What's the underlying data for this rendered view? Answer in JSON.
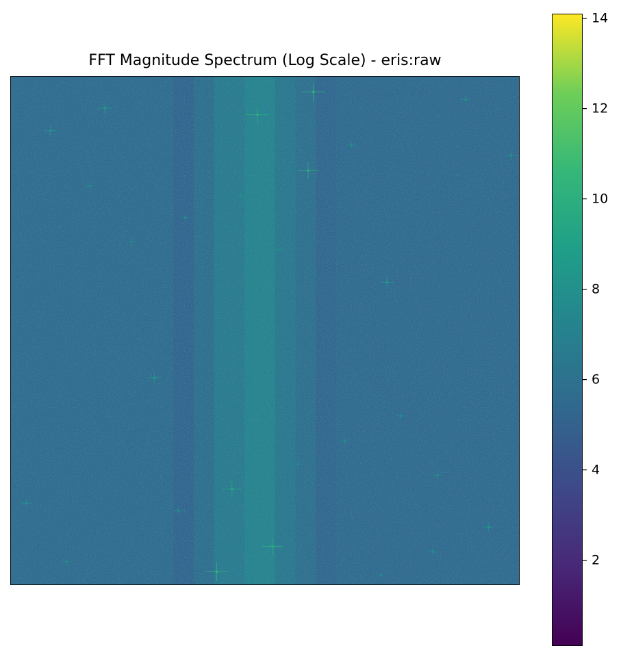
{
  "chart_data": {
    "type": "heatmap",
    "title": "FFT Magnitude Spectrum (Log Scale) - eris:raw",
    "xlabel": "",
    "ylabel": "",
    "axes_visible": false,
    "colormap": "viridis",
    "colorbar": {
      "placement": "right",
      "range": [
        0.1,
        14.1
      ],
      "ticks": [
        2,
        4,
        6,
        8,
        10,
        12,
        14
      ],
      "tick_labels": [
        "2",
        "4",
        "6",
        "8",
        "10",
        "12",
        "14"
      ]
    },
    "background_value": 5.6,
    "column_bands": [
      {
        "x": [
          0.0,
          0.32
        ],
        "value": 5.6
      },
      {
        "x": [
          0.32,
          0.36
        ],
        "value": 5.2
      },
      {
        "x": [
          0.36,
          0.4
        ],
        "value": 5.8
      },
      {
        "x": [
          0.4,
          0.46
        ],
        "value": 6.6
      },
      {
        "x": [
          0.46,
          0.52
        ],
        "value": 7.2
      },
      {
        "x": [
          0.52,
          0.56
        ],
        "value": 6.4
      },
      {
        "x": [
          0.56,
          0.6
        ],
        "value": 5.9
      },
      {
        "x": [
          0.6,
          0.64
        ],
        "value": 5.3
      },
      {
        "x": [
          0.64,
          1.0
        ],
        "value": 5.5
      }
    ],
    "peaks": [
      {
        "x": 0.595,
        "y": 0.03,
        "value": 10.2
      },
      {
        "x": 0.485,
        "y": 0.075,
        "value": 10.0
      },
      {
        "x": 0.585,
        "y": 0.185,
        "value": 9.8
      },
      {
        "x": 0.185,
        "y": 0.062,
        "value": 8.6
      },
      {
        "x": 0.078,
        "y": 0.106,
        "value": 8.4
      },
      {
        "x": 0.985,
        "y": 0.155,
        "value": 8.2
      },
      {
        "x": 0.895,
        "y": 0.045,
        "value": 8.0
      },
      {
        "x": 0.67,
        "y": 0.135,
        "value": 7.8
      },
      {
        "x": 0.343,
        "y": 0.278,
        "value": 7.8
      },
      {
        "x": 0.156,
        "y": 0.215,
        "value": 7.6
      },
      {
        "x": 0.237,
        "y": 0.325,
        "value": 7.6
      },
      {
        "x": 0.453,
        "y": 0.233,
        "value": 7.8
      },
      {
        "x": 0.53,
        "y": 0.34,
        "value": 7.8
      },
      {
        "x": 0.74,
        "y": 0.405,
        "value": 8.6
      },
      {
        "x": 0.282,
        "y": 0.593,
        "value": 8.6
      },
      {
        "x": 0.487,
        "y": 0.658,
        "value": 7.6
      },
      {
        "x": 0.767,
        "y": 0.668,
        "value": 7.8
      },
      {
        "x": 0.657,
        "y": 0.718,
        "value": 7.8
      },
      {
        "x": 0.565,
        "y": 0.763,
        "value": 7.6
      },
      {
        "x": 0.84,
        "y": 0.785,
        "value": 7.8
      },
      {
        "x": 0.435,
        "y": 0.812,
        "value": 9.6
      },
      {
        "x": 0.33,
        "y": 0.855,
        "value": 7.8
      },
      {
        "x": 0.03,
        "y": 0.84,
        "value": 8.0
      },
      {
        "x": 0.94,
        "y": 0.887,
        "value": 8.2
      },
      {
        "x": 0.515,
        "y": 0.925,
        "value": 9.8
      },
      {
        "x": 0.405,
        "y": 0.975,
        "value": 10.2
      },
      {
        "x": 0.83,
        "y": 0.935,
        "value": 7.8
      },
      {
        "x": 0.11,
        "y": 0.955,
        "value": 7.6
      },
      {
        "x": 0.728,
        "y": 0.982,
        "value": 7.4
      },
      {
        "x": 0.52,
        "y": 0.498,
        "value": 7.2
      }
    ]
  }
}
